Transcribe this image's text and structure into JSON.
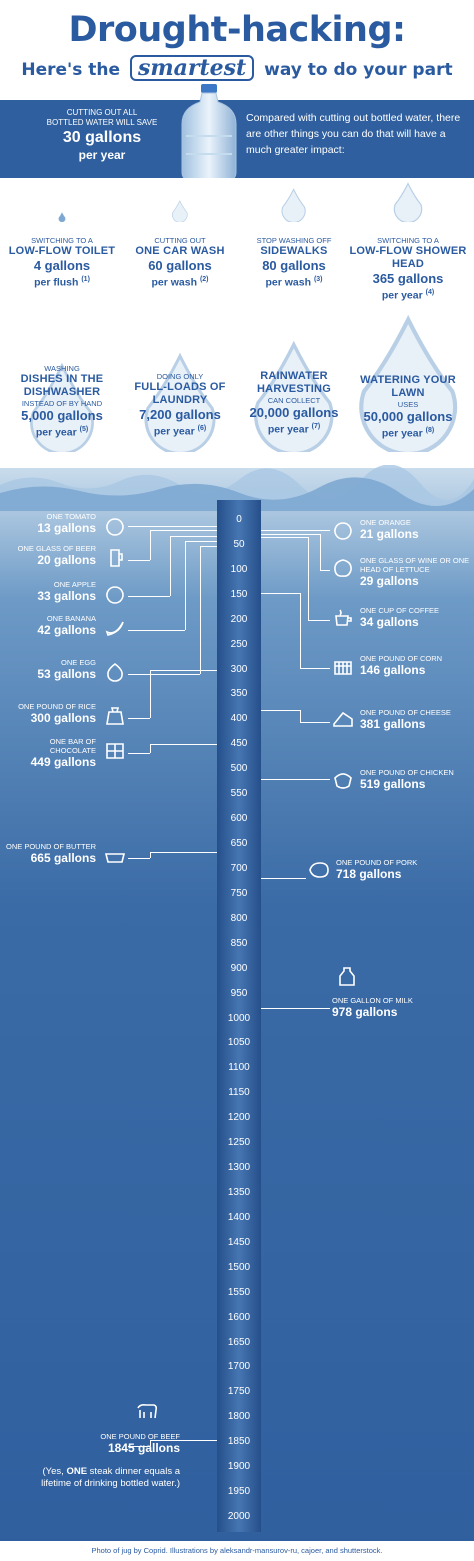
{
  "header": {
    "title": "Drought-hacking:",
    "subtitle_pre": "Here's the",
    "subtitle_emph": "smartest",
    "subtitle_post": "way to do your part"
  },
  "banner": {
    "left_line1": "CUTTING OUT ALL",
    "left_line2": "BOTTLED WATER WILL SAVE",
    "left_value": "30 gallons",
    "left_unit": "per year",
    "right_text": "Compared with cutting out bottled water, there are other things you can do that will have a much greater impact:"
  },
  "tips": [
    {
      "pre": "SWITCHING TO A",
      "main": "LOW-FLOW TOILET",
      "sub": "",
      "value": "4 gallons",
      "unit": "per flush",
      "note": "(1)"
    },
    {
      "pre": "CUTTING OUT",
      "main": "ONE CAR WASH",
      "sub": "",
      "value": "60 gallons",
      "unit": "per wash",
      "note": "(2)"
    },
    {
      "pre": "STOP WASHING OFF",
      "main": "SIDEWALKS",
      "sub": "",
      "value": "80 gallons",
      "unit": "per wash",
      "note": "(3)"
    },
    {
      "pre": "SWITCHING TO A",
      "main": "LOW-FLOW SHOWER HEAD",
      "sub": "",
      "value": "365 gallons",
      "unit": "per year",
      "note": "(4)"
    },
    {
      "pre": "WASHING",
      "main": "DISHES IN THE DISHWASHER",
      "sub": "INSTEAD OF BY HAND",
      "value": "5,000 gallons",
      "unit": "per year",
      "note": "(5)"
    },
    {
      "pre": "DOING ONLY",
      "main": "FULL-LOADS OF LAUNDRY",
      "sub": "",
      "value": "7,200 gallons",
      "unit": "per year",
      "note": "(6)"
    },
    {
      "pre": "",
      "main": "RAINWATER HARVESTING",
      "sub": "CAN COLLECT",
      "value": "20,000 gallons",
      "unit": "per year",
      "note": "(7)"
    },
    {
      "pre": "",
      "main": "WATERING YOUR LAWN",
      "sub": "USES",
      "value": "50,000 gallons",
      "unit": "per year",
      "note": "(8)"
    }
  ],
  "chart_data": {
    "type": "scatter",
    "title": "",
    "xlabel": "",
    "ylabel": "",
    "ylim": [
      0,
      2000
    ],
    "ticks": [
      0,
      50,
      100,
      150,
      200,
      250,
      300,
      350,
      400,
      450,
      500,
      550,
      600,
      650,
      700,
      750,
      800,
      850,
      900,
      950,
      1000,
      1050,
      1100,
      1150,
      1200,
      1250,
      1300,
      1350,
      1400,
      1450,
      1500,
      1550,
      1600,
      1650,
      1700,
      1750,
      1800,
      1850,
      1900,
      1950,
      2000
    ],
    "left_items": [
      {
        "label": "ONE TOMATO",
        "value": 13,
        "text": "13 gallons",
        "icon": "tomato-icon"
      },
      {
        "label": "ONE GLASS OF BEER",
        "value": 20,
        "text": "20 gallons",
        "icon": "beer-icon"
      },
      {
        "label": "ONE APPLE",
        "value": 33,
        "text": "33 gallons",
        "icon": "apple-icon"
      },
      {
        "label": "ONE BANANA",
        "value": 42,
        "text": "42 gallons",
        "icon": "banana-icon"
      },
      {
        "label": "ONE EGG",
        "value": 53,
        "text": "53 gallons",
        "icon": "egg-icon"
      },
      {
        "label": "ONE POUND OF RICE",
        "value": 300,
        "text": "300 gallons",
        "icon": "rice-icon"
      },
      {
        "label": "ONE BAR OF CHOCOLATE",
        "value": 449,
        "text": "449 gallons",
        "icon": "chocolate-icon"
      },
      {
        "label": "ONE POUND OF BUTTER",
        "value": 665,
        "text": "665 gallons",
        "icon": "butter-icon"
      },
      {
        "label": "ONE POUND OF BEEF",
        "value": 1845,
        "text": "1845 gallons",
        "icon": "cow-icon"
      }
    ],
    "right_items": [
      {
        "label": "ONE ORANGE",
        "value": 21,
        "text": "21 gallons",
        "icon": "orange-icon"
      },
      {
        "label": "ONE GLASS OF WINE OR ONE HEAD OF LETTUCE",
        "value": 29,
        "text": "29 gallons",
        "icon": "lettuce-icon"
      },
      {
        "label": "ONE CUP OF COFFEE",
        "value": 34,
        "text": "34 gallons",
        "icon": "coffee-icon"
      },
      {
        "label": "ONE POUND OF CORN",
        "value": 146,
        "text": "146 gallons",
        "icon": "corn-icon"
      },
      {
        "label": "ONE POUND OF CHEESE",
        "value": 381,
        "text": "381 gallons",
        "icon": "cheese-icon"
      },
      {
        "label": "ONE POUND OF CHICKEN",
        "value": 519,
        "text": "519 gallons",
        "icon": "chicken-icon"
      },
      {
        "label": "ONE POUND OF PORK",
        "value": 718,
        "text": "718 gallons",
        "icon": "pork-icon"
      },
      {
        "label": "ONE GALLON OF MILK",
        "value": 978,
        "text": "978 gallons",
        "icon": "milk-icon"
      }
    ]
  },
  "steak_note_pre": "(Yes, ",
  "steak_note_emph": "ONE",
  "steak_note_post": " steak dinner equals a lifetime of drinking bottled water.)",
  "footer": "Photo of jug by Coprid. Illustrations by aleksandr-mansurov-ru, cajoer, and shutterstock."
}
